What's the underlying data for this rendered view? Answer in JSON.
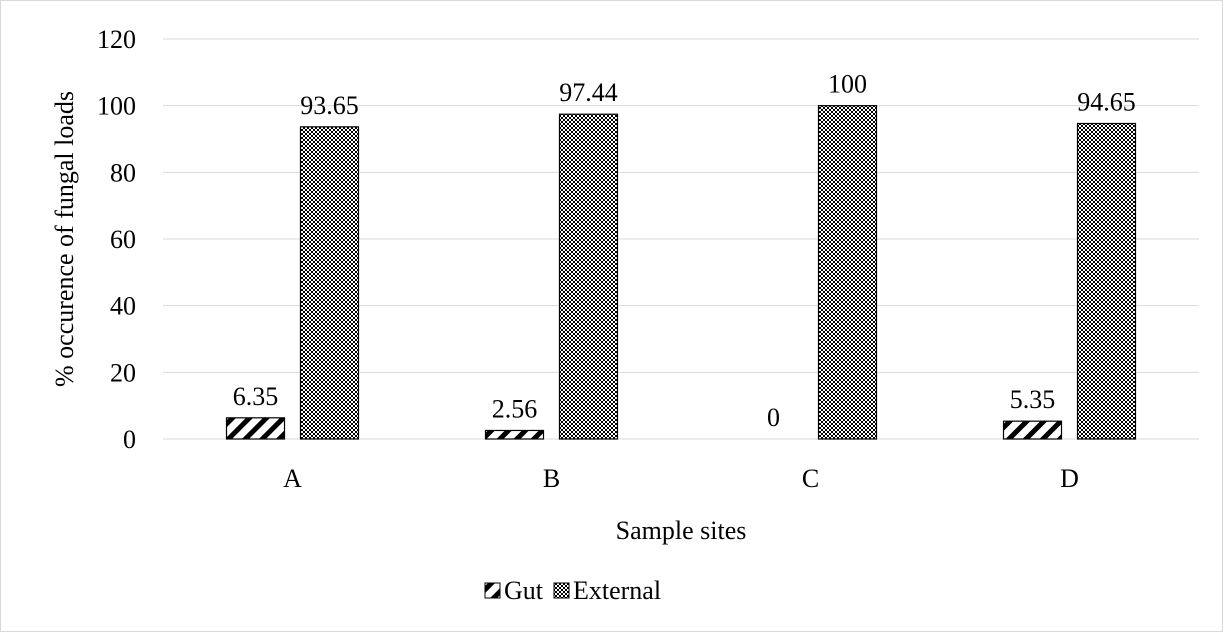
{
  "chart_data": {
    "type": "bar",
    "categories": [
      "A",
      "B",
      "C",
      "D"
    ],
    "series": [
      {
        "name": "Gut",
        "values": [
          6.35,
          2.56,
          0,
          5.35
        ],
        "labels": [
          "6.35",
          "2.56",
          "0",
          "5.35"
        ],
        "pattern": "diagonal-stripes"
      },
      {
        "name": "External",
        "values": [
          93.65,
          97.44,
          100,
          94.65
        ],
        "labels": [
          "93.65",
          "97.44",
          "100",
          "94.65"
        ],
        "pattern": "checkered-dots"
      }
    ],
    "xlabel": "Sample sites",
    "ylabel": "% occurence of fungal loads",
    "ylim": [
      0,
      120
    ],
    "yticks": [
      "0",
      "20",
      "40",
      "60",
      "80",
      "100",
      "120"
    ],
    "grid": true,
    "legend_position": "bottom",
    "colors": {
      "grid": "#d9d9d9",
      "bar_outline": "#000000",
      "pattern_ink": "#000000",
      "background": "#ffffff"
    }
  }
}
